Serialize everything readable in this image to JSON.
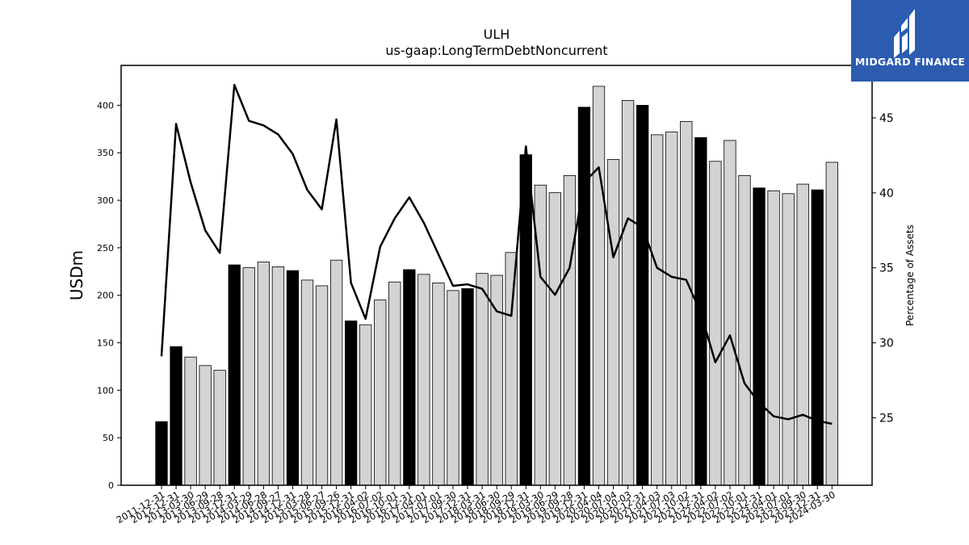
{
  "brand": {
    "name": "MIDGARD FINANCE",
    "color": "#2b5cb0"
  },
  "chart_data": {
    "type": "bar",
    "title": "ULH",
    "subtitle": "us-gaap:LongTermDebtNoncurrent",
    "ylabel": "USDm",
    "y2label": "Percentage of Assets",
    "ylim": [
      0,
      442
    ],
    "y2lim": [
      20.5,
      48.5
    ],
    "yticks": [
      0,
      50,
      100,
      150,
      200,
      250,
      300,
      350,
      400
    ],
    "y2ticks": [
      25,
      30,
      35,
      40,
      45
    ],
    "categories": [
      "2011-12-31",
      "2012-12-31",
      "2013-03-30",
      "2013-06-29",
      "2013-09-28",
      "2013-12-31",
      "2014-03-29",
      "2014-06-28",
      "2014-09-27",
      "2014-12-31",
      "2015-03-28",
      "2015-06-27",
      "2015-09-26",
      "2015-12-31",
      "2016-04-02",
      "2016-07-02",
      "2016-10-01",
      "2016-12-31",
      "2017-04-01",
      "2017-07-01",
      "2017-09-30",
      "2017-12-31",
      "2018-03-31",
      "2018-06-30",
      "2018-09-29",
      "2018-12-31",
      "2019-03-30",
      "2019-06-29",
      "2019-09-28",
      "2019-12-31",
      "2020-04-04",
      "2020-07-04",
      "2020-10-03",
      "2020-12-31",
      "2021-04-03",
      "2021-07-03",
      "2021-10-02",
      "2021-12-31",
      "2022-04-02",
      "2022-07-02",
      "2022-10-01",
      "2022-12-31",
      "2023-04-01",
      "2023-07-01",
      "2023-09-30",
      "2023-12-31",
      "2024-03-30"
    ],
    "series": [
      {
        "values": [
          67,
          146,
          135,
          126,
          121,
          232,
          229,
          235,
          230,
          226,
          216,
          210,
          237,
          173,
          169,
          195,
          214,
          227,
          222,
          213,
          205,
          207,
          223,
          221,
          245,
          348,
          316,
          308,
          326,
          398,
          420,
          343,
          405,
          400,
          369,
          372,
          383,
          366,
          341,
          363,
          326,
          313,
          310,
          307,
          317,
          311,
          340
        ],
        "fourth_quarter_color": "#000000",
        "other_color": "#d3d3d3"
      },
      {
        "axis": "right",
        "type": "line",
        "values": [
          29.1,
          44.6,
          40.7,
          37.5,
          36.0,
          47.2,
          44.8,
          44.5,
          43.9,
          42.6,
          40.2,
          38.9,
          44.9,
          34.0,
          31.6,
          36.4,
          38.3,
          39.7,
          38.0,
          35.9,
          33.8,
          33.9,
          33.6,
          32.1,
          31.8,
          43.1,
          34.4,
          33.2,
          35.0,
          40.7,
          41.7,
          35.7,
          38.3,
          37.7,
          35.0,
          34.4,
          34.2,
          32.0,
          28.7,
          30.5,
          27.3,
          26.0,
          25.1,
          24.9,
          25.2,
          24.8,
          24.6
        ],
        "color": "#000000"
      }
    ],
    "grid": false,
    "legend": "none"
  }
}
